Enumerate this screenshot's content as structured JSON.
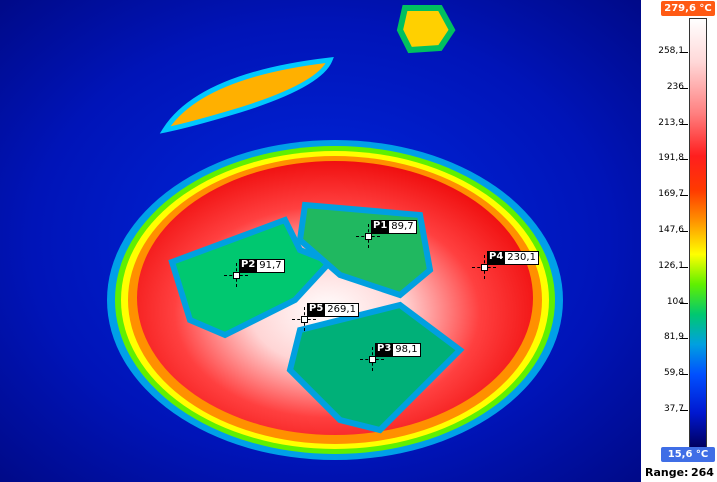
{
  "scale": {
    "max": "279,6 °C",
    "min": "15,6 °C",
    "ticks": [
      "258,1",
      "236",
      "213,9",
      "191,8",
      "169,7",
      "147,6",
      "126,1",
      "104",
      "81,9",
      "59,8",
      "37,7"
    ],
    "range_label": "Range:",
    "range_value": "264"
  },
  "points": [
    {
      "name": "P1",
      "value": "89,7"
    },
    {
      "name": "P2",
      "value": "91,7"
    },
    {
      "name": "P3",
      "value": "98,1"
    },
    {
      "name": "P4",
      "value": "230,1"
    },
    {
      "name": "P5",
      "value": "269,1"
    }
  ],
  "colors": {
    "max_badge": "#ff5a14",
    "min_badge": "#3f6ee6",
    "background_cold": "#0010b0"
  }
}
